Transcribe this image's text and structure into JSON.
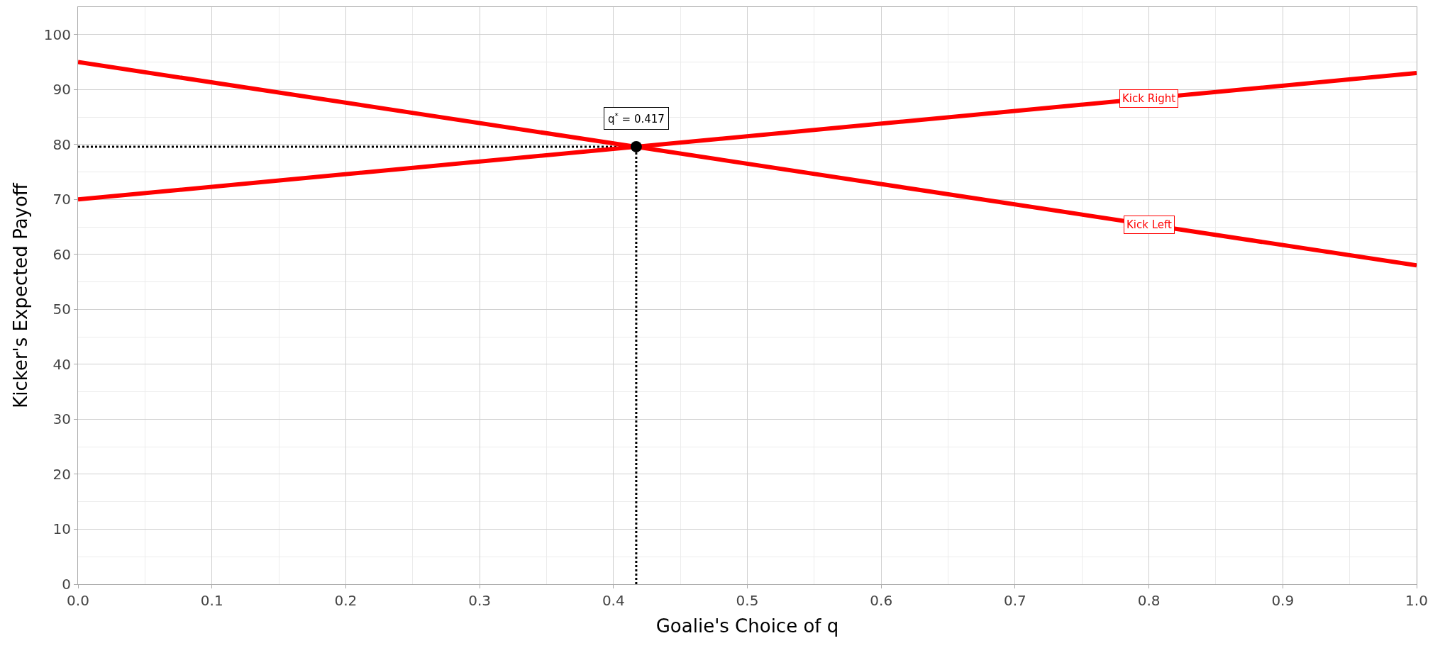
{
  "chart_data": {
    "type": "line",
    "xlabel": "Goalie's Choice of q",
    "ylabel": "Kicker's Expected Payoff",
    "xlim": [
      0,
      1
    ],
    "ylim": [
      0,
      105
    ],
    "xticks": [
      {
        "value": 0,
        "label": "0.0"
      },
      0.1,
      0.2,
      0.3,
      0.4,
      0.5,
      0.6,
      0.7,
      0.8,
      0.9,
      {
        "value": 1,
        "label": "1.0"
      }
    ],
    "yticks": [
      0,
      10,
      20,
      30,
      40,
      50,
      60,
      70,
      80,
      90,
      100
    ],
    "grid": true,
    "legend": false,
    "marker": "none",
    "line_style": "solid",
    "series": [
      {
        "name": "Kick Right",
        "color": "#ff0000",
        "x": [
          0,
          1
        ],
        "values": [
          70,
          93
        ]
      },
      {
        "name": "Kick Left",
        "color": "#ff0000",
        "x": [
          0,
          1
        ],
        "values": [
          95,
          58
        ]
      },
      {
        "type": "scatter",
        "marker": "circle",
        "color": "#000000",
        "x": [
          0.417
        ],
        "values": [
          79.6
        ]
      }
    ],
    "ref_lines": [
      {
        "axis": "x",
        "value": 0.417,
        "line_style": "dotted",
        "color": "#000000"
      },
      {
        "axis": "y",
        "value": 79.6,
        "line_style": "dotted",
        "color": "#000000"
      }
    ],
    "annotations": [
      {
        "text": "q$^{*}$ = 0.417",
        "x": 0.417,
        "y": 79.6
      }
    ]
  }
}
